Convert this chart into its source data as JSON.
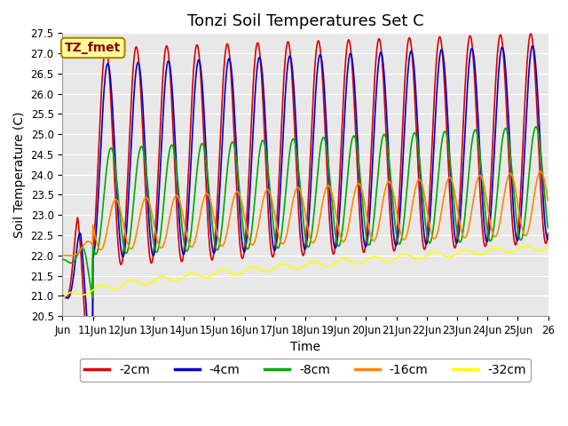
{
  "title": "Tonzi Soil Temperatures Set C",
  "xlabel": "Time",
  "ylabel": "Soil Temperature (C)",
  "ylim": [
    20.5,
    27.5
  ],
  "xlim_days": [
    0,
    16
  ],
  "x_tick_labels": [
    "Jun",
    "11Jun",
    "12Jun",
    "13Jun",
    "14Jun",
    "15Jun",
    "16Jun",
    "17Jun",
    "18Jun",
    "19Jun",
    "20Jun",
    "21Jun",
    "22Jun",
    "23Jun",
    "24Jun",
    "25Jun",
    "26"
  ],
  "x_tick_positions": [
    0,
    1,
    2,
    3,
    4,
    5,
    6,
    7,
    8,
    9,
    10,
    11,
    12,
    13,
    14,
    15,
    16
  ],
  "series": [
    {
      "label": "-2cm",
      "color": "#dd0000",
      "lw": 1.2
    },
    {
      "label": "-4cm",
      "color": "#0000cc",
      "lw": 1.2
    },
    {
      "label": "-8cm",
      "color": "#00aa00",
      "lw": 1.2
    },
    {
      "label": "-16cm",
      "color": "#ff8800",
      "lw": 1.2
    },
    {
      "label": "-32cm",
      "color": "#ffff00",
      "lw": 1.2
    }
  ],
  "legend_label": "TZ_fmet",
  "legend_bg": "#ffff99",
  "legend_edge": "#aa8800",
  "bg_color": "#e8e8e8",
  "fig_bg": "#ffffff",
  "grid_color": "#ffffff",
  "title_fontsize": 13,
  "axis_fontsize": 10,
  "tick_fontsize": 8.5,
  "legend_fontsize": 10
}
